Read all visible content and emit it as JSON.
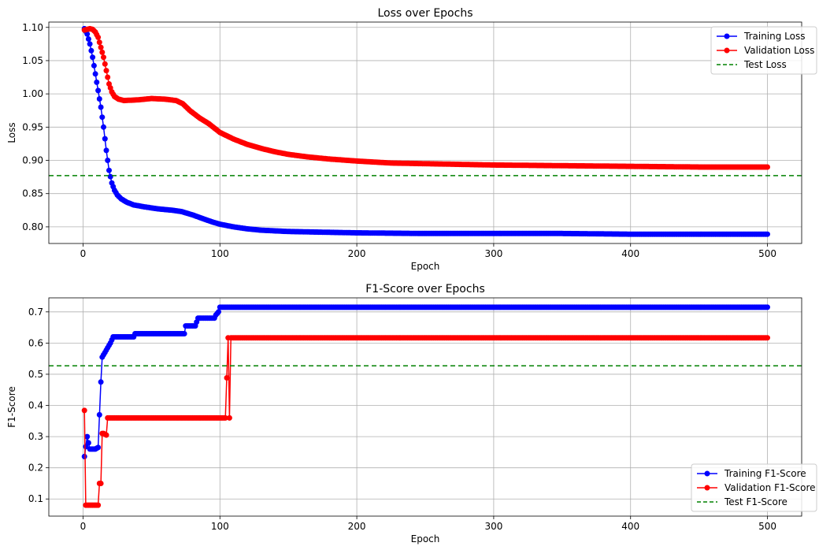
{
  "chart_data": [
    {
      "type": "line",
      "title": "Loss over Epochs",
      "xlabel": "Epoch",
      "ylabel": "Loss",
      "xlim": [
        -25,
        525
      ],
      "ylim": [
        0.775,
        1.108
      ],
      "xticks": [
        "0",
        "100",
        "200",
        "300",
        "400",
        "500"
      ],
      "yticks": [
        "0.80",
        "0.85",
        "0.90",
        "0.95",
        "1.00",
        "1.05",
        "1.10"
      ],
      "grid": true,
      "legend_position": "upper right",
      "colors": {
        "train": "#0000ff",
        "val": "#ff0000",
        "test": "#008000"
      },
      "series": [
        {
          "name": "Training Loss",
          "points": [
            [
              1,
              1.098
            ],
            [
              3,
              1.09
            ],
            [
              5,
              1.075
            ],
            [
              7,
              1.055
            ],
            [
              9,
              1.03
            ],
            [
              11,
              1.005
            ],
            [
              13,
              0.98
            ],
            [
              15,
              0.95
            ],
            [
              17,
              0.915
            ],
            [
              19,
              0.885
            ],
            [
              21,
              0.866
            ],
            [
              23,
              0.855
            ],
            [
              25,
              0.848
            ],
            [
              28,
              0.842
            ],
            [
              32,
              0.837
            ],
            [
              37,
              0.833
            ],
            [
              45,
              0.83
            ],
            [
              55,
              0.827
            ],
            [
              65,
              0.825
            ],
            [
              72,
              0.823
            ],
            [
              80,
              0.818
            ],
            [
              88,
              0.812
            ],
            [
              95,
              0.807
            ],
            [
              100,
              0.804
            ],
            [
              110,
              0.8
            ],
            [
              120,
              0.797
            ],
            [
              130,
              0.795
            ],
            [
              150,
              0.793
            ],
            [
              175,
              0.792
            ],
            [
              200,
              0.791
            ],
            [
              250,
              0.79
            ],
            [
              300,
              0.79
            ],
            [
              350,
              0.79
            ],
            [
              400,
              0.789
            ],
            [
              450,
              0.789
            ],
            [
              500,
              0.789
            ]
          ]
        },
        {
          "name": "Validation Loss",
          "points": [
            [
              1,
              1.096
            ],
            [
              3,
              1.097
            ],
            [
              5,
              1.098
            ],
            [
              7,
              1.097
            ],
            [
              9,
              1.093
            ],
            [
              11,
              1.085
            ],
            [
              13,
              1.07
            ],
            [
              15,
              1.055
            ],
            [
              17,
              1.035
            ],
            [
              19,
              1.015
            ],
            [
              21,
              1.003
            ],
            [
              23,
              0.996
            ],
            [
              26,
              0.992
            ],
            [
              30,
              0.99
            ],
            [
              40,
              0.991
            ],
            [
              50,
              0.993
            ],
            [
              60,
              0.992
            ],
            [
              68,
              0.99
            ],
            [
              73,
              0.985
            ],
            [
              78,
              0.975
            ],
            [
              85,
              0.964
            ],
            [
              92,
              0.955
            ],
            [
              100,
              0.942
            ],
            [
              110,
              0.932
            ],
            [
              120,
              0.924
            ],
            [
              130,
              0.918
            ],
            [
              140,
              0.913
            ],
            [
              150,
              0.909
            ],
            [
              165,
              0.905
            ],
            [
              180,
              0.902
            ],
            [
              200,
              0.899
            ],
            [
              225,
              0.896
            ],
            [
              250,
              0.895
            ],
            [
              300,
              0.893
            ],
            [
              350,
              0.892
            ],
            [
              400,
              0.891
            ],
            [
              450,
              0.89
            ],
            [
              500,
              0.89
            ]
          ]
        },
        {
          "name": "Test Loss",
          "value": 0.877
        }
      ]
    },
    {
      "type": "line",
      "title": "F1-Score over Epochs",
      "xlabel": "Epoch",
      "ylabel": "F1-Score",
      "xlim": [
        -25,
        525
      ],
      "ylim": [
        0.045,
        0.745
      ],
      "xticks": [
        "0",
        "100",
        "200",
        "300",
        "400",
        "500"
      ],
      "yticks": [
        "0.1",
        "0.2",
        "0.3",
        "0.4",
        "0.5",
        "0.6",
        "0.7"
      ],
      "grid": true,
      "legend_position": "lower right",
      "colors": {
        "train": "#0000ff",
        "val": "#ff0000",
        "test": "#008000"
      },
      "series": [
        {
          "name": "Training F1-Score",
          "points": [
            [
              1,
              0.236
            ],
            [
              3,
              0.3
            ],
            [
              5,
              0.26
            ],
            [
              7,
              0.26
            ],
            [
              9,
              0.26
            ],
            [
              11,
              0.265
            ],
            [
              13,
              0.475
            ],
            [
              14,
              0.555
            ],
            [
              16,
              0.57
            ],
            [
              18,
              0.585
            ],
            [
              20,
              0.6
            ],
            [
              22,
              0.62
            ],
            [
              30,
              0.62
            ],
            [
              37,
              0.62
            ],
            [
              38,
              0.63
            ],
            [
              50,
              0.63
            ],
            [
              60,
              0.63
            ],
            [
              65,
              0.63
            ],
            [
              66,
              0.63
            ],
            [
              74,
              0.63
            ],
            [
              75,
              0.655
            ],
            [
              82,
              0.655
            ],
            [
              84,
              0.68
            ],
            [
              96,
              0.68
            ],
            [
              97,
              0.69
            ],
            [
              99,
              0.7
            ],
            [
              100,
              0.715
            ],
            [
              150,
              0.715
            ],
            [
              200,
              0.715
            ],
            [
              250,
              0.715
            ],
            [
              300,
              0.715
            ],
            [
              350,
              0.715
            ],
            [
              400,
              0.715
            ],
            [
              450,
              0.715
            ],
            [
              500,
              0.715
            ]
          ]
        },
        {
          "name": "Validation F1-Score",
          "points": [
            [
              1,
              0.384
            ],
            [
              2,
              0.08
            ],
            [
              4,
              0.08
            ],
            [
              6,
              0.08
            ],
            [
              8,
              0.08
            ],
            [
              10,
              0.08
            ],
            [
              11,
              0.08
            ],
            [
              12,
              0.15
            ],
            [
              13,
              0.15
            ],
            [
              14,
              0.31
            ],
            [
              15,
              0.31
            ],
            [
              17,
              0.305
            ],
            [
              18,
              0.36
            ],
            [
              20,
              0.36
            ],
            [
              30,
              0.36
            ],
            [
              50,
              0.36
            ],
            [
              70,
              0.36
            ],
            [
              90,
              0.36
            ],
            [
              104,
              0.36
            ],
            [
              106,
              0.617
            ],
            [
              107,
              0.36
            ],
            [
              108,
              0.617
            ],
            [
              150,
              0.617
            ],
            [
              200,
              0.617
            ],
            [
              250,
              0.617
            ],
            [
              300,
              0.617
            ],
            [
              350,
              0.617
            ],
            [
              400,
              0.617
            ],
            [
              450,
              0.617
            ],
            [
              500,
              0.617
            ]
          ]
        },
        {
          "name": "Test F1-Score",
          "value": 0.527
        }
      ]
    }
  ]
}
